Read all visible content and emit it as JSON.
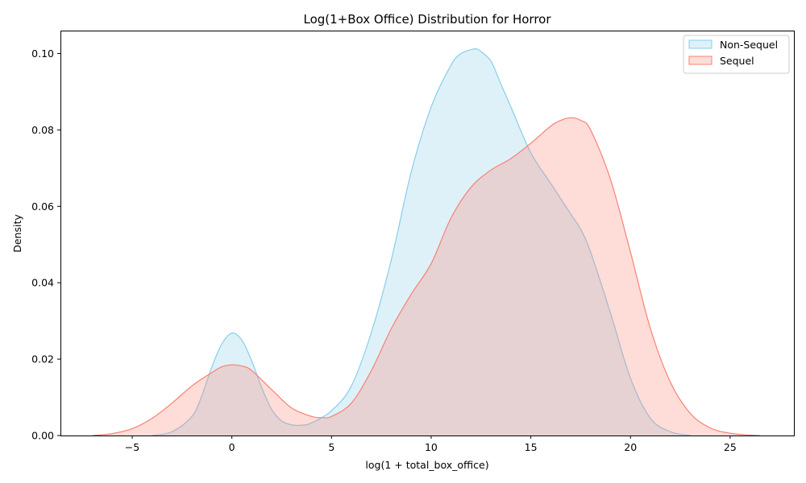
{
  "chart_data": {
    "type": "area",
    "title": "Log(1+Box Office) Distribution for Horror",
    "xlabel": "log(1 + total_box_office)",
    "ylabel": "Density",
    "xlim": [
      -8.6,
      28.2
    ],
    "ylim": [
      0,
      0.106
    ],
    "xticks": [
      -5,
      0,
      5,
      10,
      15,
      20,
      25
    ],
    "xtick_labels": [
      "−5",
      "0",
      "5",
      "10",
      "15",
      "20",
      "25"
    ],
    "yticks": [
      0,
      0.02,
      0.04,
      0.06,
      0.08,
      0.1
    ],
    "ytick_labels": [
      "0.00",
      "0.02",
      "0.04",
      "0.06",
      "0.08",
      "0.10"
    ],
    "grid": false,
    "legend_position": "top-right",
    "series": [
      {
        "name": "Non-Sequel",
        "color": "#87ceeb",
        "fill_opacity": 0.28,
        "x": [
          -4,
          -3,
          -2,
          -1.5,
          -1,
          -0.5,
          0,
          0.5,
          1,
          1.5,
          2,
          2.5,
          3,
          3.5,
          4,
          5,
          6,
          7,
          8,
          9,
          10,
          11,
          11.5,
          12,
          12.3,
          12.5,
          13,
          13.5,
          14,
          15,
          16,
          17,
          17.5,
          18,
          19,
          20,
          21,
          22,
          23
        ],
        "y": [
          0.0,
          0.001,
          0.005,
          0.0105,
          0.018,
          0.024,
          0.0268,
          0.025,
          0.0195,
          0.0125,
          0.0068,
          0.0038,
          0.0028,
          0.0027,
          0.0033,
          0.0065,
          0.013,
          0.027,
          0.046,
          0.069,
          0.086,
          0.097,
          0.1,
          0.101,
          0.1012,
          0.1005,
          0.098,
          0.092,
          0.086,
          0.074,
          0.066,
          0.058,
          0.054,
          0.048,
          0.032,
          0.015,
          0.0045,
          0.001,
          0.0
        ]
      },
      {
        "name": "Sequel",
        "color": "#fa8072",
        "fill_opacity": 0.28,
        "x": [
          -7,
          -6,
          -5,
          -4,
          -3,
          -2,
          -1,
          -0.5,
          0,
          0.5,
          1,
          2,
          3,
          4,
          4.5,
          5,
          6,
          7,
          8,
          9,
          10,
          11,
          12,
          13,
          14,
          15,
          16,
          16.5,
          17,
          17.5,
          18,
          19,
          20,
          21,
          22,
          23,
          24,
          25,
          26,
          26.5
        ],
        "y": [
          0.0,
          0.0005,
          0.0018,
          0.0045,
          0.0085,
          0.013,
          0.0165,
          0.018,
          0.0185,
          0.0182,
          0.017,
          0.012,
          0.0072,
          0.005,
          0.0047,
          0.005,
          0.0085,
          0.017,
          0.028,
          0.037,
          0.045,
          0.057,
          0.065,
          0.0695,
          0.0725,
          0.0765,
          0.081,
          0.0825,
          0.0832,
          0.0825,
          0.08,
          0.067,
          0.048,
          0.028,
          0.014,
          0.0058,
          0.002,
          0.0006,
          0.0001,
          0.0
        ]
      }
    ]
  }
}
